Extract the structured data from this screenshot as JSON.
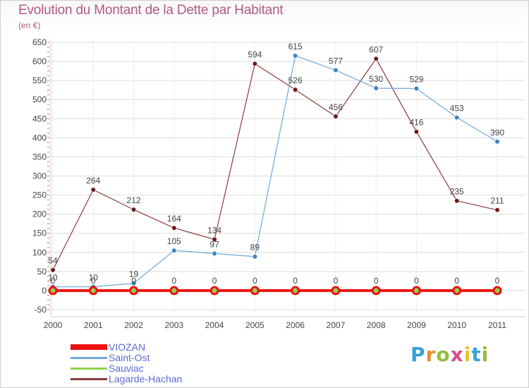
{
  "header": {
    "title": "Evolution du Montant de la Dette par Habitant",
    "unit": "(en €)"
  },
  "colors": {
    "title": "#b05a86",
    "grid": "#dddddd",
    "axis_text": "#444444",
    "legend_text": "#5e6ad6"
  },
  "logo": {
    "text": "Proxiti"
  },
  "chart_data": {
    "type": "line",
    "title": "Evolution du Montant de la Dette par Habitant",
    "ylabel": "(en €)",
    "xlabel": "",
    "categories": [
      "2000",
      "2001",
      "2002",
      "2003",
      "2004",
      "2005",
      "2006",
      "2007",
      "2008",
      "2009",
      "2010",
      "2011"
    ],
    "ylim": [
      -50,
      650
    ],
    "yticks": [
      -50,
      0,
      50,
      100,
      150,
      200,
      250,
      300,
      350,
      400,
      450,
      500,
      550,
      600,
      650
    ],
    "grid": true,
    "legend_position": "bottom-left",
    "series": [
      {
        "name": "VIOZAN",
        "color": "#ee1111",
        "width": 4,
        "values": [
          0,
          0,
          0,
          0,
          0,
          0,
          0,
          0,
          0,
          0,
          0,
          0
        ],
        "show_labels": false
      },
      {
        "name": "Saint-Ost",
        "color": "#6fa8dc",
        "marker": "#3d85c6",
        "width": 1.2,
        "values": [
          10,
          10,
          19,
          105,
          97,
          89,
          615,
          577,
          530,
          529,
          453,
          390
        ],
        "show_labels": true
      },
      {
        "name": "Sauviac",
        "color": "#8fd14f",
        "marker": "#8fd14f",
        "width": 1.5,
        "values": [
          0,
          0,
          0,
          0,
          0,
          0,
          0,
          0,
          0,
          0,
          0,
          0
        ],
        "show_labels": true
      },
      {
        "name": "Lagarde-Hachan",
        "color": "#8b3a3a",
        "marker": "#6b1a1a",
        "width": 1.2,
        "values": [
          54,
          264,
          212,
          164,
          134,
          594,
          526,
          456,
          607,
          416,
          235,
          211
        ],
        "show_labels": true
      }
    ]
  }
}
